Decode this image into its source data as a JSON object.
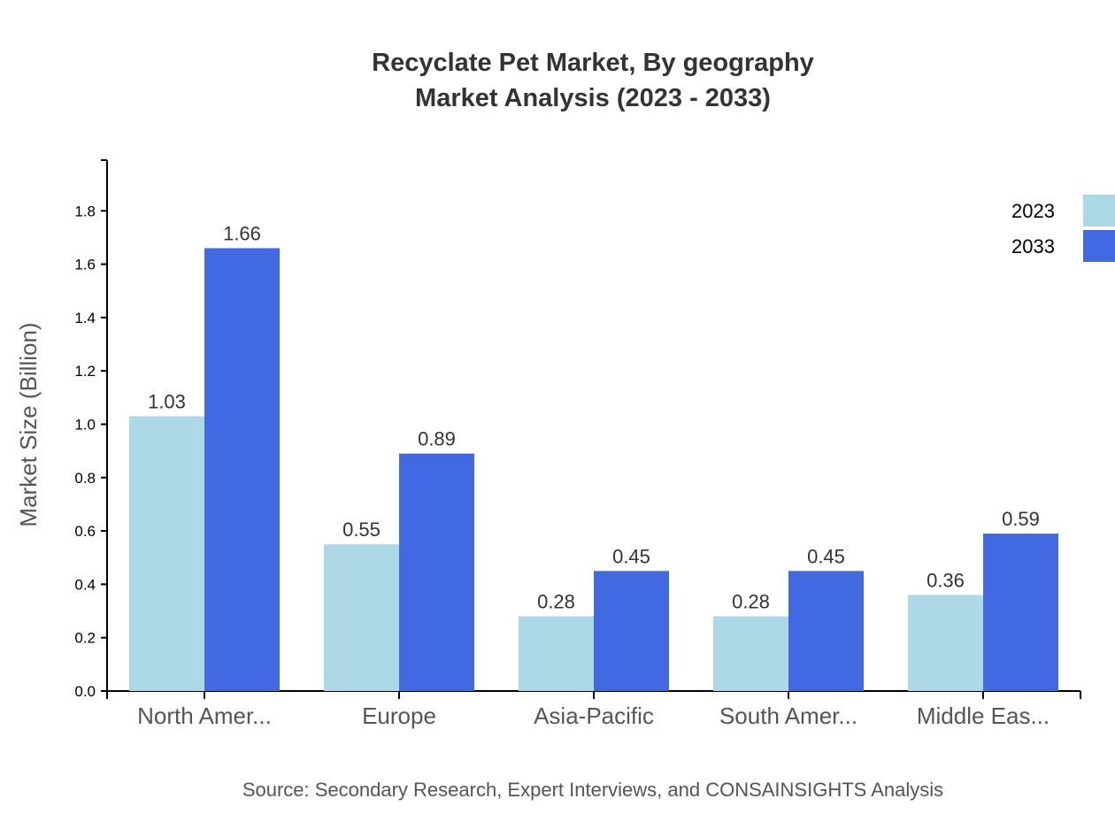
{
  "chart_data": {
    "type": "bar",
    "title": [
      "Recyclate Pet Market, By geography",
      "Market Analysis (2023 - 2033)"
    ],
    "xlabel": "",
    "ylabel": "Market Size (Billion)",
    "ylim": [
      0,
      1.99
    ],
    "yticks": [
      0.0,
      0.2,
      0.4,
      0.6,
      0.8,
      1.0,
      1.2,
      1.4,
      1.6,
      1.8
    ],
    "categories": [
      "North Amer...",
      "Europe",
      "Asia-Pacific",
      "South Amer...",
      "Middle Eas..."
    ],
    "series": [
      {
        "name": "2023",
        "color": "#add8e6",
        "values": [
          1.03,
          0.55,
          0.28,
          0.28,
          0.36
        ]
      },
      {
        "name": "2033",
        "color": "#4169e1",
        "values": [
          1.66,
          0.89,
          0.45,
          0.45,
          0.59
        ]
      }
    ],
    "legend": "top-right",
    "grid": false,
    "source": "Source: Secondary Research, Expert Interviews, and CONSAINSIGHTS Analysis"
  }
}
